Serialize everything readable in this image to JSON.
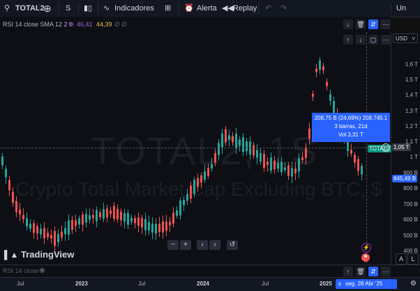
{
  "toolbar": {
    "symbol": "TOTAL2",
    "interval": "S",
    "indicators_label": "Indicadores",
    "alert_label": "Alerta",
    "replay_label": "Replay",
    "right_partial": "Un"
  },
  "rsi_legend": {
    "label": "RSI 14 close SMA 12 2",
    "value1": "46,41",
    "value2": "44,39",
    "na1": "∅",
    "na2": "∅",
    "value1_color": "#9c6ade",
    "value2_color": "#e9c046"
  },
  "currency": "USD",
  "watermark": {
    "title": "TOTAL2, 1S",
    "subtitle": "Crypto Total Market Cap Excluding BTC, $"
  },
  "price_axis": [
    "1,6 T",
    "1,5 T",
    "1,4 T",
    "1,3 T",
    "1,2 T",
    "1,1 T",
    "1 T",
    "900 B",
    "800 B",
    "700 B",
    "600 B",
    "500 B",
    "400 B"
  ],
  "price_tags": {
    "symbol_tag": "TOTAL2",
    "crosshair_price": "1,05 T",
    "last_price": "845,49 B",
    "last_price_color": "#2962ff",
    "symbol_tag_color": "#089981"
  },
  "measure_tooltip": {
    "line1": "208,75 B (24,69%) 208.745.1",
    "line2": "3 barras, 21d",
    "line3": "Vol 3,31 T"
  },
  "logo_text": "TradingView",
  "controls": [
    "−",
    "+",
    "‹",
    "›",
    "↺"
  ],
  "bottom_pane_label": "RSI 14 close",
  "time_axis": {
    "labels": [
      "Jul",
      "2023",
      "Jul",
      "2024",
      "Jul",
      "2025"
    ],
    "crosshair_date": "seg. 28 Abr '25",
    "crosshair_prefix": "s"
  },
  "axis_buttons": [
    "A",
    "L"
  ],
  "colors": {
    "up": "#26a69a",
    "down": "#ef5350",
    "accent": "#2962ff"
  }
}
